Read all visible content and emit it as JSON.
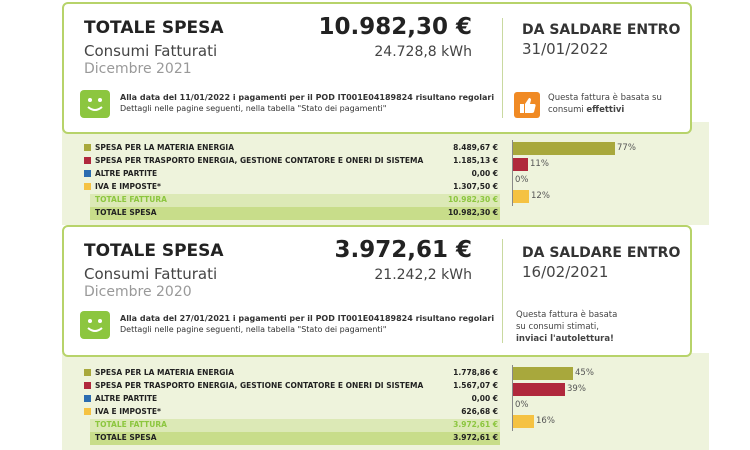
{
  "bills": [
    {
      "title": "TOTALE SPESA",
      "subtitle": "Consumi Fatturati",
      "period": "Dicembre 2021",
      "amount": "10.982,30 €",
      "energy": "24.728,8 kWh",
      "due_label": "DA SALDARE ENTRO",
      "due_date": "31/01/2022",
      "payment_line1": "Alla data del 11/01/2022 i pagamenti per il POD IT001E04189824 risultano regolari",
      "payment_line2": "Dettagli nelle pagine seguenti, nella tabella \"Stato dei pagamenti\"",
      "note_line1": "Questa fattura è basata su",
      "note_line2_pre": "consumi ",
      "note_line2_bold": "effettivi",
      "note_icon": "thumbs-up-icon",
      "items": [
        {
          "label": "SPESA PER LA MATERIA ENERGIA",
          "value": "8.489,67 €",
          "color": "#a8a83c",
          "pct": "77%",
          "share": 77
        },
        {
          "label": "SPESA PER TRASPORTO ENERGIA, GESTIONE CONTATORE E ONERI DI SISTEMA",
          "value": "1.185,13 €",
          "color": "#b0283c",
          "pct": "11%",
          "share": 11
        },
        {
          "label": "ALTRE PARTITE",
          "value": "0,00 €",
          "color": "#2b6cb0",
          "pct": "0%",
          "share": 0
        },
        {
          "label": "IVA E IMPOSTE*",
          "value": "1.307,50 €",
          "color": "#f5c242",
          "pct": "12%",
          "share": 12
        }
      ],
      "total_invoice_label": "TOTALE FATTURA",
      "total_invoice_value": "10.982,30 €",
      "total_spend_label": "TOTALE SPESA",
      "total_spend_value": "10.982,30 €"
    },
    {
      "title": "TOTALE SPESA",
      "subtitle": "Consumi Fatturati",
      "period": "Dicembre 2020",
      "amount": "3.972,61 €",
      "energy": "21.242,2 kWh",
      "due_label": "DA SALDARE ENTRO",
      "due_date": "16/02/2021",
      "payment_line1": "Alla data del 27/01/2021 i pagamenti per il POD IT001E04189824 risultano regolari",
      "payment_line2": "Dettagli nelle pagine seguenti, nella tabella \"Stato dei pagamenti\"",
      "note_line1": "Questa fattura è basata",
      "note_line2": "su consumi stimati,",
      "note_line3": "inviaci l'autolettura!",
      "items": [
        {
          "label": "SPESA PER LA MATERIA ENERGIA",
          "value": "1.778,86 €",
          "color": "#a8a83c",
          "pct": "45%",
          "share": 45
        },
        {
          "label": "SPESA PER TRASPORTO ENERGIA, GESTIONE CONTATORE E ONERI DI SISTEMA",
          "value": "1.567,07 €",
          "color": "#b0283c",
          "pct": "39%",
          "share": 39
        },
        {
          "label": "ALTRE PARTITE",
          "value": "0,00 €",
          "color": "#2b6cb0",
          "pct": "0%",
          "share": 0
        },
        {
          "label": "IVA E IMPOSTE*",
          "value": "626,68 €",
          "color": "#f5c242",
          "pct": "16%",
          "share": 16
        }
      ],
      "total_invoice_label": "TOTALE FATTURA",
      "total_invoice_value": "3.972,61 €",
      "total_spend_label": "TOTALE SPESA",
      "total_spend_value": "3.972,61 €"
    }
  ]
}
